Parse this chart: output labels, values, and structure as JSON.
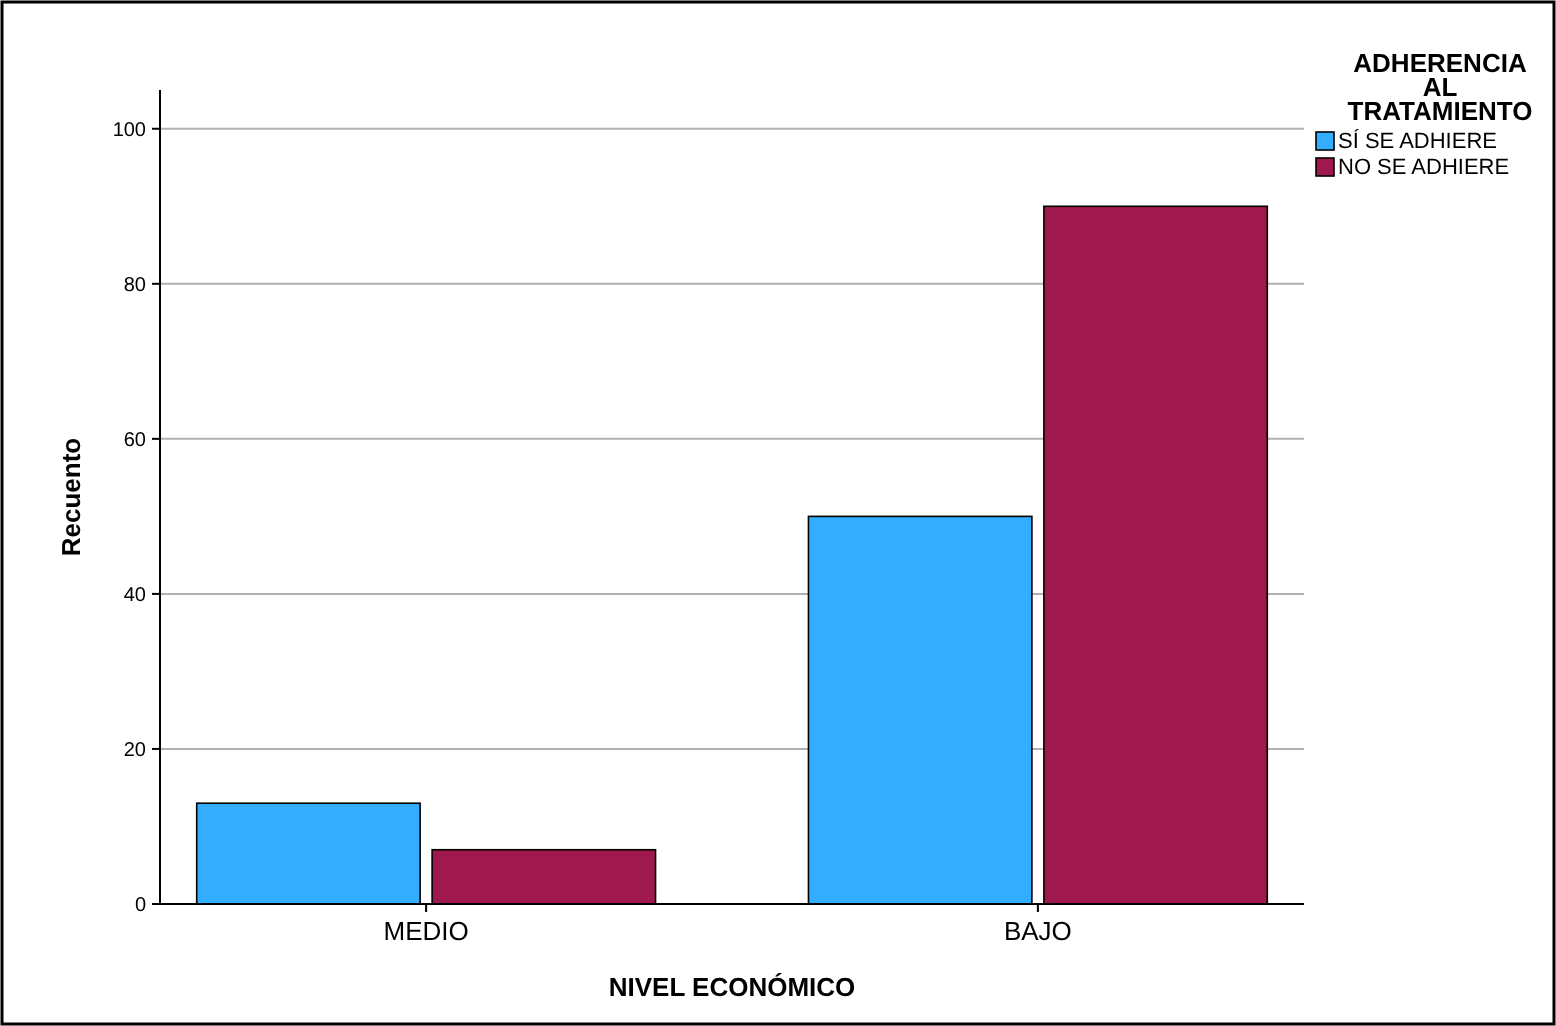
{
  "chart_data": {
    "type": "bar",
    "xlabel": "NIVEL ECONÓMICO",
    "ylabel": "Recuento",
    "legend_title": "ADHERENCIA AL TRATAMIENTO",
    "categories": [
      "MEDIO",
      "BAJO"
    ],
    "series": [
      {
        "name": "SÍ SE ADHIERE",
        "color": "#33adff",
        "values": [
          13,
          50
        ]
      },
      {
        "name": "NO SE ADHIERE",
        "color": "#a0194e",
        "values": [
          7,
          90
        ]
      }
    ],
    "ylim": [
      0,
      105
    ],
    "yticks": [
      0,
      20,
      40,
      60,
      80,
      100
    ],
    "grid": "y",
    "legend": "top right"
  }
}
